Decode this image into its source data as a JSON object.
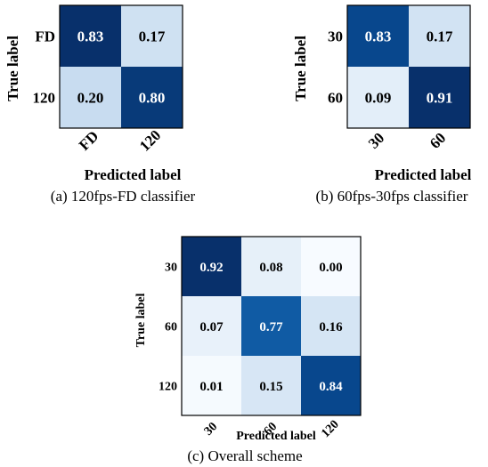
{
  "colors": {
    "low": "#f7fbff",
    "high": "#08306b",
    "frame": "#000000",
    "dark_text": "#000000",
    "light_text": "#ffffff"
  },
  "chart_data": [
    {
      "type": "heatmap",
      "caption": "(a) 120fps-FD classifier",
      "xlabel": "Predicted label",
      "ylabel": "True label",
      "x_ticks": [
        "FD",
        "120"
      ],
      "y_ticks": [
        "FD",
        "120"
      ],
      "values": [
        [
          0.83,
          0.17
        ],
        [
          0.2,
          0.8
        ]
      ],
      "value_labels": [
        [
          "0.83",
          "0.17"
        ],
        [
          "0.20",
          "0.80"
        ]
      ]
    },
    {
      "type": "heatmap",
      "caption": "(b) 60fps-30fps classifier",
      "xlabel": "Predicted label",
      "ylabel": "True label",
      "x_ticks": [
        "30",
        "60"
      ],
      "y_ticks": [
        "30",
        "60"
      ],
      "values": [
        [
          0.83,
          0.17
        ],
        [
          0.09,
          0.91
        ]
      ],
      "value_labels": [
        [
          "0.83",
          "0.17"
        ],
        [
          "0.09",
          "0.91"
        ]
      ]
    },
    {
      "type": "heatmap",
      "caption": "(c) Overall scheme",
      "xlabel": "Predicted label",
      "ylabel": "True label",
      "x_ticks": [
        "30",
        "60",
        "120"
      ],
      "y_ticks": [
        "30",
        "60",
        "120"
      ],
      "values": [
        [
          0.92,
          0.08,
          0.0
        ],
        [
          0.07,
          0.77,
          0.16
        ],
        [
          0.01,
          0.15,
          0.84
        ]
      ],
      "value_labels": [
        [
          "0.92",
          "0.08",
          "0.00"
        ],
        [
          "0.07",
          "0.77",
          "0.16"
        ],
        [
          "0.01",
          "0.15",
          "0.84"
        ]
      ]
    }
  ]
}
